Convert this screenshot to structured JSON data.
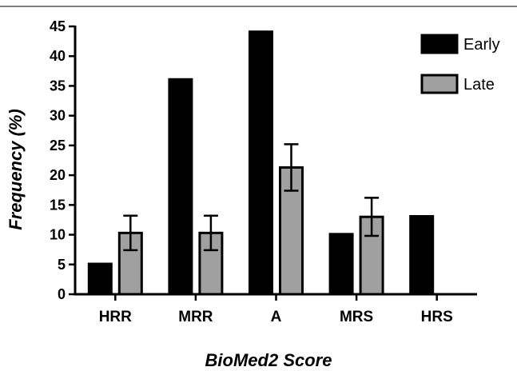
{
  "chart_data": {
    "type": "bar",
    "categories": [
      "HRR",
      "MRR",
      "A",
      "MRS",
      "HRS"
    ],
    "series": [
      {
        "name": "Early",
        "color": "#000000",
        "values": [
          5.1,
          36.1,
          44.1,
          10.1,
          13.1
        ],
        "errors": null
      },
      {
        "name": "Late",
        "color": "#a0a0a0",
        "values": [
          10.3,
          10.3,
          21.3,
          13.0,
          null
        ],
        "errors": [
          2.9,
          2.9,
          3.9,
          3.2,
          null
        ]
      }
    ],
    "xlabel": "BioMed2 Score",
    "ylabel": "Frequency (%)",
    "ylim": [
      0,
      45
    ],
    "yticks": [
      0,
      5,
      10,
      15,
      20,
      25,
      30,
      35,
      40,
      45
    ],
    "grid": false,
    "legend_position": "top-right"
  }
}
